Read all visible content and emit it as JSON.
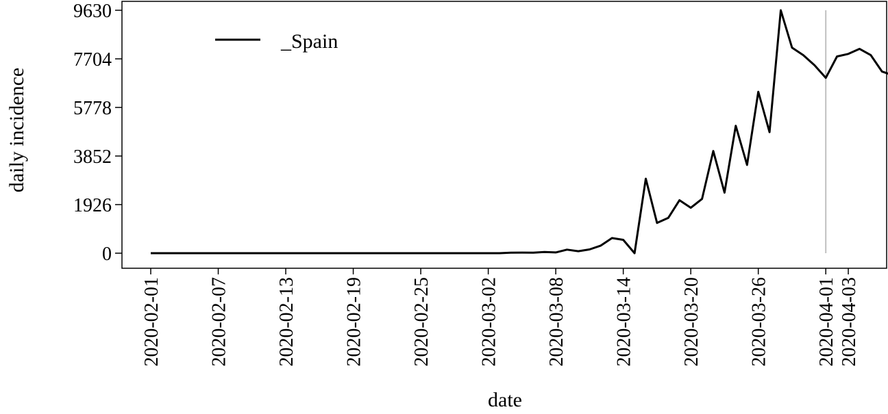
{
  "chart_data": {
    "type": "line",
    "title": "",
    "xlabel": "date",
    "ylabel": "daily incidence",
    "x_start": "2020-02-01",
    "x_end": "2020-04-06",
    "xlim": [
      "2020-01-31",
      "2020-04-08"
    ],
    "ylim": [
      -500,
      10000
    ],
    "yticks": [
      0,
      1926,
      3852,
      5778,
      7704,
      9630
    ],
    "ytick_labels": [
      "0",
      "1926",
      "3852",
      "5778",
      "7704",
      "9630"
    ],
    "xticks": [
      "2020-02-01",
      "2020-02-07",
      "2020-02-13",
      "2020-02-19",
      "2020-02-25",
      "2020-03-02",
      "2020-03-08",
      "2020-03-14",
      "2020-03-20",
      "2020-03-26",
      "2020-04-01",
      "2020-04-03"
    ],
    "grid": false,
    "legend_position": "top-left",
    "series": [
      {
        "name": "_Spain",
        "color": "#000000",
        "values": [
          0,
          0,
          0,
          0,
          0,
          0,
          0,
          0,
          0,
          0,
          0,
          0,
          0,
          0,
          0,
          0,
          0,
          0,
          0,
          0,
          0,
          0,
          0,
          0,
          0,
          0,
          0,
          0,
          0,
          0,
          0,
          0,
          20,
          25,
          20,
          45,
          30,
          140,
          80,
          150,
          300,
          600,
          530,
          0,
          2955,
          1200,
          1400,
          2100,
          1800,
          2150,
          4050,
          2400,
          5050,
          3500,
          6400,
          4800,
          9630,
          8150,
          7850,
          7450,
          6950,
          7800,
          7900,
          8100,
          7850,
          7200,
          7050
        ]
      }
    ],
    "vertical_line": {
      "date": "2020-04-01",
      "color": "#c0c0c0"
    }
  }
}
